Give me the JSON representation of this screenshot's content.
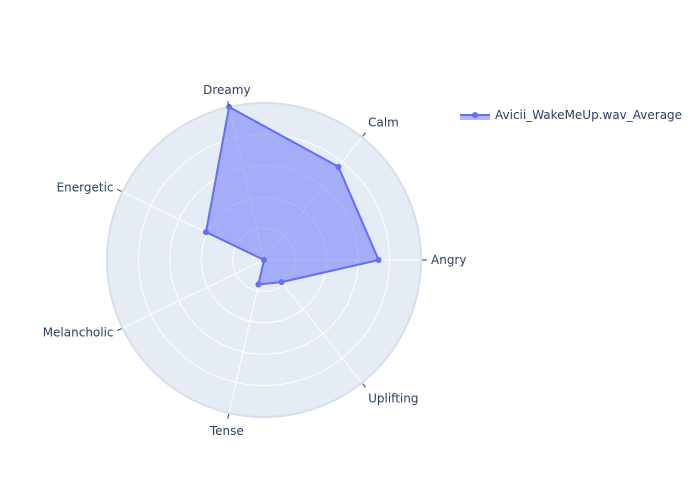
{
  "chart_data": {
    "type": "radar",
    "axes": [
      "Angry",
      "Calm",
      "Dreamy",
      "Energetic",
      "Melancholic",
      "Tense",
      "Uplifting"
    ],
    "series": [
      {
        "name": "Avicii_WakeMeUp.wav_Average",
        "values": [
          0.73,
          0.76,
          1.0,
          0.41,
          0.0,
          0.16,
          0.18
        ]
      }
    ],
    "rlim": [
      0,
      1
    ],
    "grid": true,
    "legend": "top-right",
    "colors": {
      "series_line": "#636efa",
      "series_fill": "#636efa",
      "polar_bg": "#e5ecf6",
      "grid": "#ffffff",
      "text": "#2a3f5f"
    }
  }
}
